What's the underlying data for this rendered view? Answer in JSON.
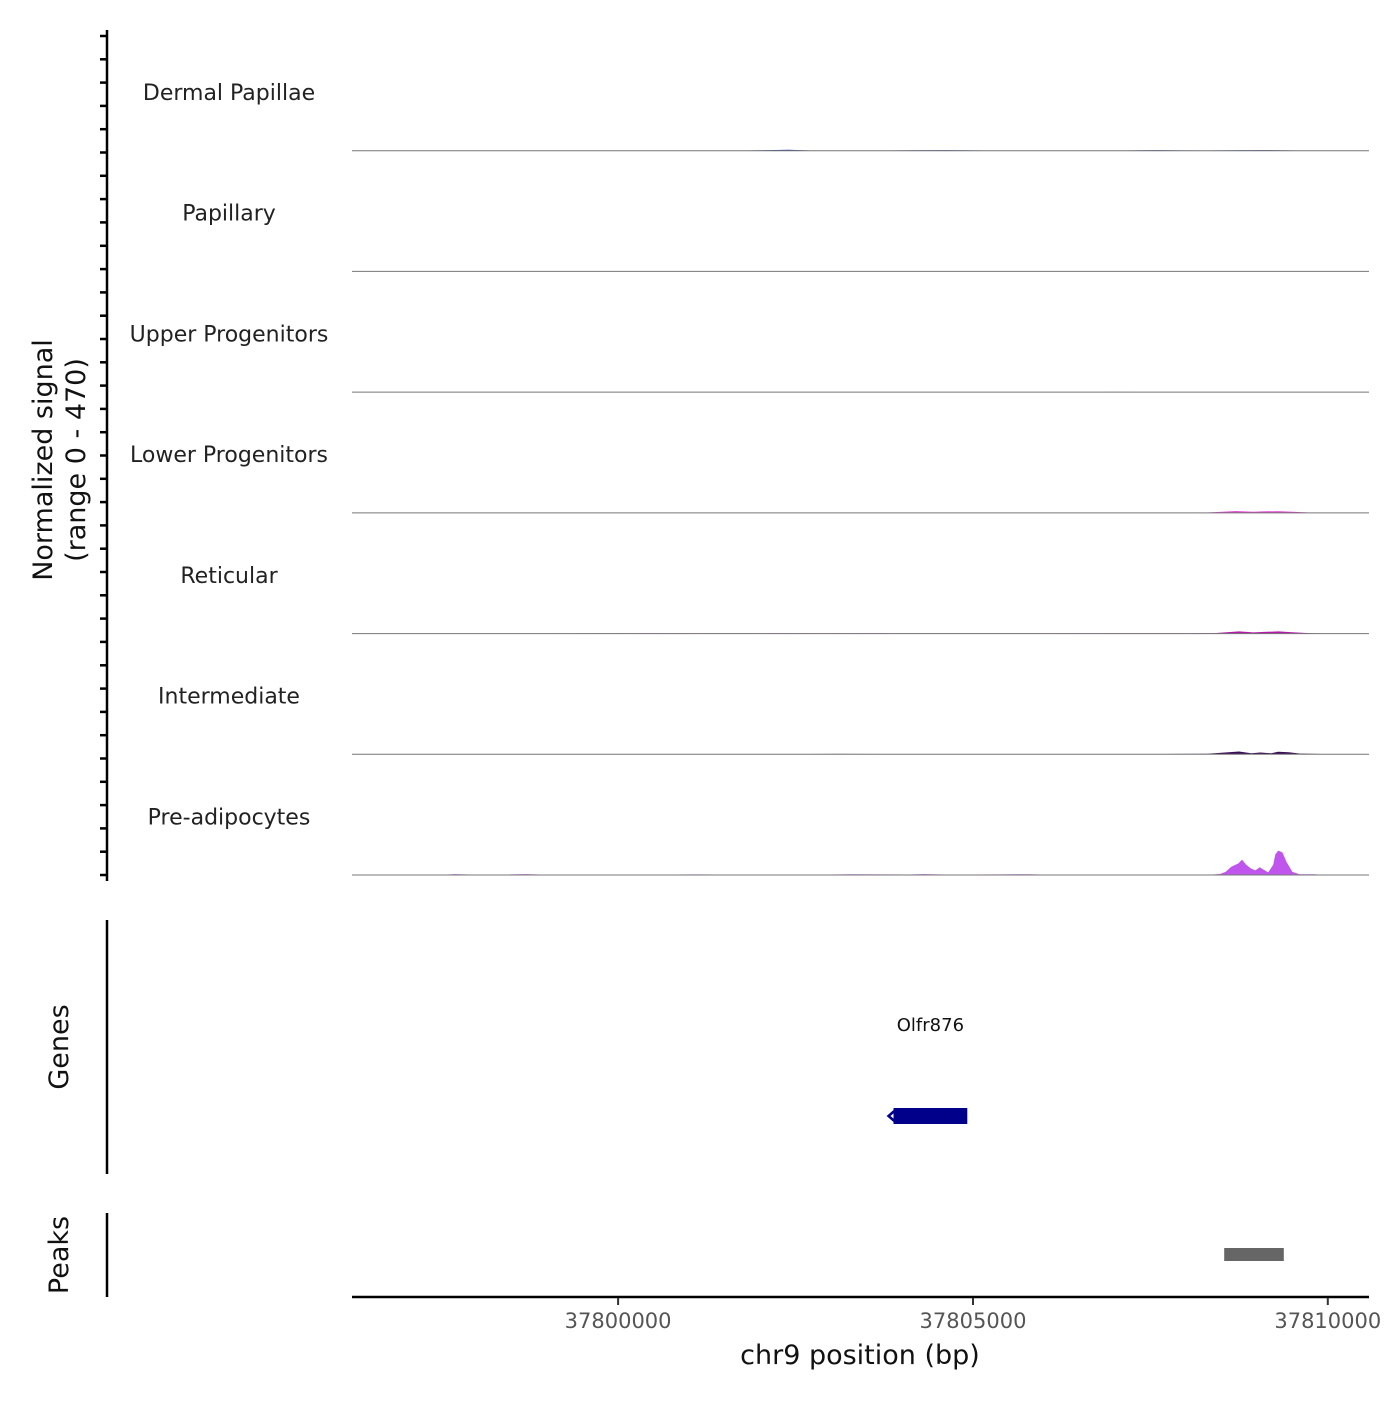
{
  "chart_data": {
    "type": "area",
    "chromosome": "chr9",
    "xlabel": "chr9 position (bp)",
    "xlim": [
      37796250,
      37810580
    ],
    "x_ticks": [
      37800000,
      37805000,
      37810000
    ],
    "x_tick_labels": [
      "37800000",
      "37805000",
      "37810000"
    ],
    "ylabel_line1": "Normalized signal",
    "ylabel_line2": "(range 0 - 470)",
    "ylim": [
      0,
      470
    ],
    "tracks": [
      {
        "name": "Dermal Papillae",
        "color": "#1a3aa8",
        "points": [
          [
            37796600,
            0
          ],
          [
            37797300,
            0.3
          ],
          [
            37798000,
            0.2
          ],
          [
            37798600,
            0.5
          ],
          [
            37799300,
            0.4
          ],
          [
            37800200,
            0.6
          ],
          [
            37800800,
            0.5
          ],
          [
            37801300,
            0.8
          ],
          [
            37801700,
            0.4
          ],
          [
            37802400,
            3.5
          ],
          [
            37802700,
            0.9
          ],
          [
            37803200,
            1.0
          ],
          [
            37803700,
            0.6
          ],
          [
            37804200,
            1.8
          ],
          [
            37804600,
            2.5
          ],
          [
            37805200,
            0.7
          ],
          [
            37805800,
            0.3
          ],
          [
            37806400,
            0.5
          ],
          [
            37807000,
            0.4
          ],
          [
            37807600,
            2.5
          ],
          [
            37807900,
            1.2
          ],
          [
            37808300,
            1.0
          ],
          [
            37808700,
            2.0
          ],
          [
            37809000,
            2.2
          ],
          [
            37809300,
            2.0
          ],
          [
            37809700,
            0.5
          ],
          [
            37810200,
            0
          ]
        ]
      },
      {
        "name": "Papillary",
        "color": "#2a8a25",
        "points": [
          [
            37796600,
            0
          ],
          [
            37797500,
            0.2
          ],
          [
            37798500,
            0.5
          ],
          [
            37799500,
            0.3
          ],
          [
            37800500,
            0.6
          ],
          [
            37801300,
            0.7
          ],
          [
            37802000,
            0.4
          ],
          [
            37802300,
            1.5
          ],
          [
            37802800,
            0.7
          ],
          [
            37803500,
            0.5
          ],
          [
            37804300,
            0.3
          ],
          [
            37805200,
            0.4
          ],
          [
            37806200,
            0.3
          ],
          [
            37807000,
            0.5
          ],
          [
            37807800,
            0.4
          ],
          [
            37808200,
            0.6
          ],
          [
            37808600,
            1.0
          ],
          [
            37809000,
            0.9
          ],
          [
            37809300,
            1.3
          ],
          [
            37809800,
            0.3
          ],
          [
            37810200,
            0
          ]
        ]
      },
      {
        "name": "Upper Progenitors",
        "color": "#2a8a25",
        "points": [
          [
            37796600,
            0
          ],
          [
            37797400,
            0.2
          ],
          [
            37798600,
            0.4
          ],
          [
            37799500,
            0.2
          ],
          [
            37800600,
            0.3
          ],
          [
            37801600,
            0.2
          ],
          [
            37802500,
            0.3
          ],
          [
            37803400,
            0.2
          ],
          [
            37804400,
            0.3
          ],
          [
            37805400,
            0.2
          ],
          [
            37806400,
            0.3
          ],
          [
            37807000,
            0.8
          ],
          [
            37807600,
            0.3
          ],
          [
            37808000,
            0.2
          ],
          [
            37808700,
            0.6
          ],
          [
            37809200,
            0.7
          ],
          [
            37809800,
            0.2
          ],
          [
            37810200,
            0
          ]
        ]
      },
      {
        "name": "Lower Progenitors",
        "color": "#e23ad6",
        "points": [
          [
            37796600,
            0
          ],
          [
            37797400,
            0.5
          ],
          [
            37798100,
            0.9
          ],
          [
            37798900,
            0.7
          ],
          [
            37799600,
            1.0
          ],
          [
            37800400,
            0.8
          ],
          [
            37801200,
            0.9
          ],
          [
            37802000,
            0.7
          ],
          [
            37802500,
            1.0
          ],
          [
            37803200,
            0.6
          ],
          [
            37803900,
            0.8
          ],
          [
            37804800,
            0.5
          ],
          [
            37805600,
            0.9
          ],
          [
            37806300,
            0.8
          ],
          [
            37806800,
            1.2
          ],
          [
            37807300,
            1.4
          ],
          [
            37807900,
            0.8
          ],
          [
            37808300,
            1.5
          ],
          [
            37808700,
            7.0
          ],
          [
            37808950,
            4.0
          ],
          [
            37809100,
            5.5
          ],
          [
            37809300,
            6.5
          ],
          [
            37809500,
            4.0
          ],
          [
            37809800,
            0.8
          ],
          [
            37810200,
            0
          ]
        ]
      },
      {
        "name": "Reticular",
        "color": "#b21ba8",
        "points": [
          [
            37796600,
            0
          ],
          [
            37797300,
            0.3
          ],
          [
            37798200,
            0.4
          ],
          [
            37799000,
            0.3
          ],
          [
            37800000,
            0.6
          ],
          [
            37800400,
            0.9
          ],
          [
            37801100,
            0.6
          ],
          [
            37802200,
            0.9
          ],
          [
            37802900,
            0.5
          ],
          [
            37803700,
            0.9
          ],
          [
            37804400,
            0.8
          ],
          [
            37805300,
            0.6
          ],
          [
            37806000,
            0.5
          ],
          [
            37806700,
            0.9
          ],
          [
            37807200,
            1.4
          ],
          [
            37807600,
            1.0
          ],
          [
            37808100,
            1.0
          ],
          [
            37808400,
            1.8
          ],
          [
            37808750,
            8.5
          ],
          [
            37808950,
            4.5
          ],
          [
            37809100,
            6.5
          ],
          [
            37809300,
            8.5
          ],
          [
            37809500,
            5.0
          ],
          [
            37809800,
            0.8
          ],
          [
            37810200,
            0
          ]
        ]
      },
      {
        "name": "Intermediate",
        "color": "#3a0f55",
        "points": [
          [
            37796600,
            0
          ],
          [
            37797200,
            0.3
          ],
          [
            37797800,
            0.6
          ],
          [
            37798400,
            0.9
          ],
          [
            37799000,
            0.8
          ],
          [
            37799600,
            0.6
          ],
          [
            37800500,
            0.7
          ],
          [
            37801400,
            0.8
          ],
          [
            37802300,
            0.6
          ],
          [
            37803100,
            1.5
          ],
          [
            37803700,
            1.2
          ],
          [
            37804500,
            0.9
          ],
          [
            37805200,
            1.3
          ],
          [
            37805800,
            1.0
          ],
          [
            37806400,
            1.2
          ],
          [
            37807000,
            1.3
          ],
          [
            37807600,
            1.2
          ],
          [
            37808300,
            1.8
          ],
          [
            37808750,
            11.0
          ],
          [
            37808920,
            4.0
          ],
          [
            37809050,
            7.0
          ],
          [
            37809200,
            4.0
          ],
          [
            37809300,
            10.0
          ],
          [
            37809450,
            8.0
          ],
          [
            37809600,
            3.0
          ],
          [
            37809900,
            1.0
          ],
          [
            37810200,
            0
          ]
        ]
      },
      {
        "name": "Pre-adipocytes",
        "color": "#bf55ec",
        "points": [
          [
            37796600,
            0
          ],
          [
            37797500,
            0.3
          ],
          [
            37797700,
            3.5
          ],
          [
            37797900,
            2.0
          ],
          [
            37798200,
            0.5
          ],
          [
            37798500,
            2.5
          ],
          [
            37798700,
            3.5
          ],
          [
            37798900,
            2.0
          ],
          [
            37799200,
            0.4
          ],
          [
            37800000,
            0.3
          ],
          [
            37801100,
            2.5
          ],
          [
            37801400,
            1.8
          ],
          [
            37801800,
            0.3
          ],
          [
            37802200,
            1.8
          ],
          [
            37802600,
            2.0
          ],
          [
            37803000,
            2.0
          ],
          [
            37803300,
            3.0
          ],
          [
            37803700,
            2.2
          ],
          [
            37804100,
            2.0
          ],
          [
            37804300,
            3.5
          ],
          [
            37804600,
            2.0
          ],
          [
            37805000,
            2.0
          ],
          [
            37805400,
            2.5
          ],
          [
            37805800,
            3.0
          ],
          [
            37806200,
            0.5
          ],
          [
            37807000,
            0.3
          ],
          [
            37807500,
            1.5
          ],
          [
            37807900,
            1.0
          ],
          [
            37808300,
            0.3
          ],
          [
            37808480,
            4
          ],
          [
            37808560,
            12
          ],
          [
            37808640,
            32
          ],
          [
            37808740,
            45
          ],
          [
            37808790,
            60
          ],
          [
            37808850,
            40
          ],
          [
            37808920,
            25
          ],
          [
            37808980,
            18
          ],
          [
            37809040,
            30
          ],
          [
            37809100,
            20
          ],
          [
            37809160,
            10
          ],
          [
            37809230,
            40
          ],
          [
            37809260,
            80
          ],
          [
            37809300,
            95
          ],
          [
            37809360,
            88
          ],
          [
            37809420,
            50
          ],
          [
            37809500,
            12
          ],
          [
            37809600,
            3
          ],
          [
            37809800,
            3
          ],
          [
            37810000,
            0
          ]
        ]
      }
    ],
    "genes": [
      {
        "name": "Olfr876",
        "start": 37803880,
        "end": 37804920,
        "strand": "-"
      }
    ],
    "peaks": [
      {
        "start": 37808540,
        "end": 37809380
      }
    ],
    "genes_label": "Genes",
    "peaks_label": "Peaks"
  }
}
